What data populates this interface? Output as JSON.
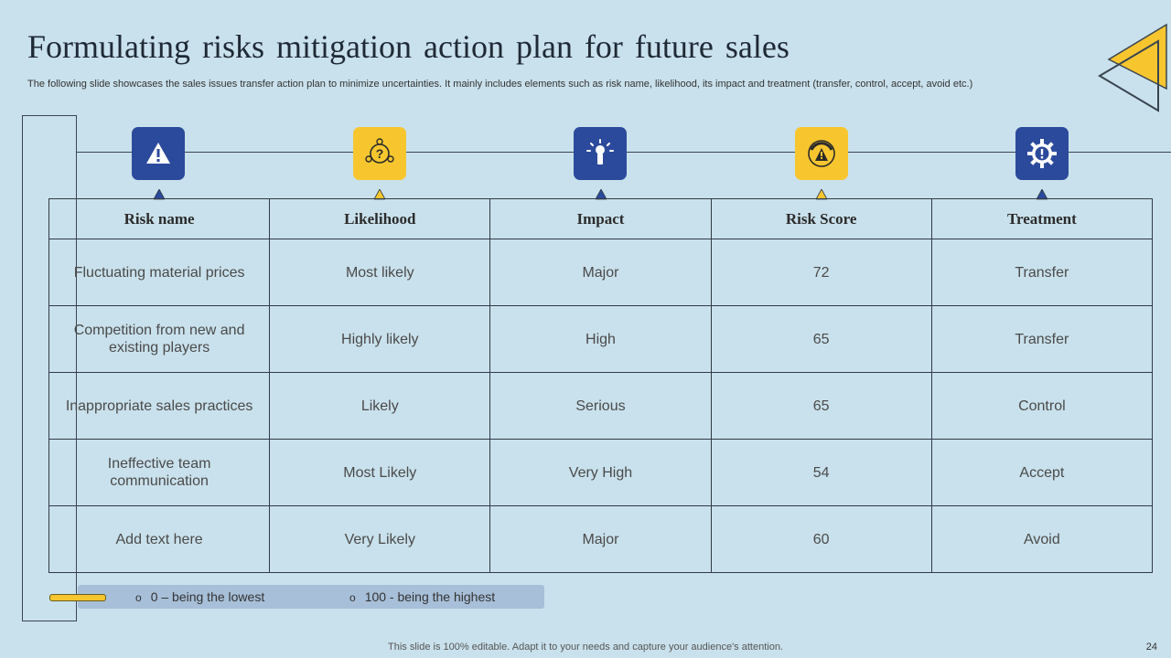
{
  "slide": {
    "title": "Formulating risks mitigation action plan for future sales",
    "subtitle": "The following slide showcases the sales issues transfer action plan to minimize uncertainties. It mainly includes elements such as risk name, likelihood, its impact and treatment (transfer, control, accept, avoid etc.)",
    "footer": "This slide is 100% editable. Adapt it to your needs and capture your audience's attention.",
    "page_number": "24"
  },
  "icons": [
    {
      "name": "warning-icon",
      "color": "#2c4a9c"
    },
    {
      "name": "question-network-icon",
      "color": "#f7c62f"
    },
    {
      "name": "impact-burst-icon",
      "color": "#2c4a9c"
    },
    {
      "name": "risk-gauge-icon",
      "color": "#f7c62f"
    },
    {
      "name": "gear-alert-icon",
      "color": "#2c4a9c"
    }
  ],
  "table": {
    "headers": [
      "Risk name",
      "Likelihood",
      "Impact",
      "Risk Score",
      "Treatment"
    ],
    "rows": [
      {
        "risk": "Fluctuating material prices",
        "likelihood": "Most likely",
        "impact": "Major",
        "score": "72",
        "treatment": "Transfer"
      },
      {
        "risk": "Competition from new and existing players",
        "likelihood": "Highly likely",
        "impact": "High",
        "score": "65",
        "treatment": "Transfer"
      },
      {
        "risk": "Inappropriate sales practices",
        "likelihood": "Likely",
        "impact": "Serious",
        "score": "65",
        "treatment": "Control"
      },
      {
        "risk": "Ineffective team communication",
        "likelihood": "Most Likely",
        "impact": "Very High",
        "score": "54",
        "treatment": "Accept"
      },
      {
        "risk": "Add text here",
        "likelihood": "Very Likely",
        "impact": "Major",
        "score": "60",
        "treatment": "Avoid"
      }
    ]
  },
  "legend": {
    "bullet": "o",
    "items": [
      "0 – being the lowest",
      "100 - being the highest"
    ]
  },
  "colors": {
    "background": "#c9e1ec",
    "accent_blue": "#2c4a9c",
    "accent_yellow": "#f7c62f"
  }
}
